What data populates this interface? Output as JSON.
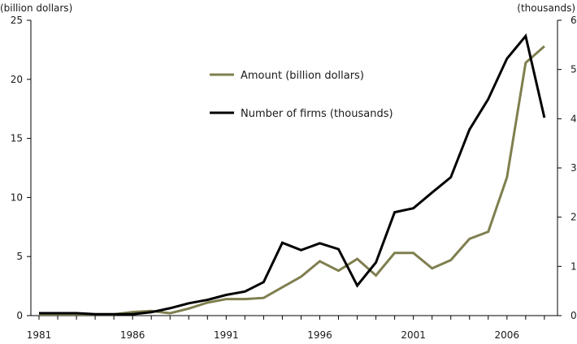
{
  "chart_data": {
    "type": "line",
    "left_axis_label": "(billion dollars)",
    "right_axis_label": "(thousands)",
    "x": [
      1981,
      1982,
      1983,
      1984,
      1985,
      1986,
      1987,
      1988,
      1989,
      1990,
      1991,
      1992,
      1993,
      1994,
      1995,
      1996,
      1997,
      1998,
      1999,
      2000,
      2001,
      2002,
      2003,
      2004,
      2005,
      2006,
      2007,
      2008
    ],
    "xticks": [
      1981,
      1986,
      1991,
      1996,
      2001,
      2006
    ],
    "xlim": [
      1981,
      2008.7
    ],
    "left_ylim": [
      0,
      25
    ],
    "left_yticks": [
      0,
      5,
      10,
      15,
      20,
      25
    ],
    "right_ylim": [
      0,
      6
    ],
    "right_yticks": [
      0,
      1,
      2,
      3,
      4,
      5,
      6
    ],
    "grid": false,
    "legend_position": "upper-center",
    "series": [
      {
        "name": "Amount (billion dollars)",
        "axis": "left",
        "color": "#7f7f4f",
        "values": [
          0.1,
          0.1,
          0.1,
          0.1,
          0.1,
          0.3,
          0.4,
          0.2,
          0.6,
          1.1,
          1.4,
          1.4,
          1.5,
          2.4,
          3.3,
          4.6,
          3.8,
          4.8,
          3.4,
          5.3,
          5.3,
          4.0,
          4.7,
          6.5,
          7.1,
          11.7,
          21.4,
          22.8
        ]
      },
      {
        "name": "Number of firms (thousands)",
        "axis": "right",
        "color": "#000000",
        "values": [
          0.05,
          0.05,
          0.05,
          0.03,
          0.03,
          0.03,
          0.07,
          0.15,
          0.25,
          0.32,
          0.42,
          0.49,
          0.68,
          1.48,
          1.33,
          1.47,
          1.35,
          0.61,
          1.08,
          2.1,
          2.18,
          2.5,
          2.81,
          3.78,
          4.4,
          5.22,
          5.68,
          4.02
        ]
      }
    ]
  }
}
